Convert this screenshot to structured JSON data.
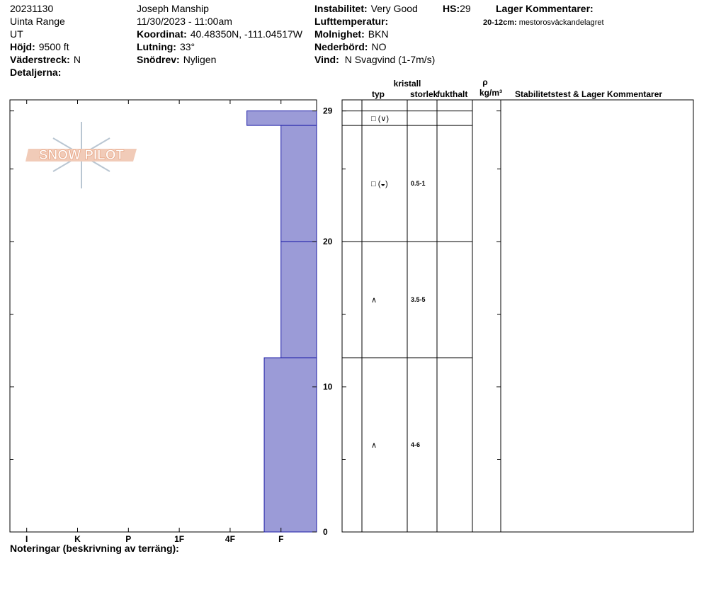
{
  "header": {
    "date": "20231130",
    "range": "Uinta Range",
    "state": "UT",
    "elevation": {
      "label": "Höjd:",
      "value": "9500 ft"
    },
    "aspect": {
      "label": "Väderstreck:",
      "value": "N"
    },
    "details": {
      "label": "Detaljerna:"
    },
    "observer": "Joseph Manship",
    "datetime": "11/30/2023 - 11:00am",
    "coordinates": {
      "label": "Koordinat:",
      "value": "40.48350N, -111.04517W"
    },
    "slope": {
      "label": "Lutning:",
      "value": "33°"
    },
    "wind_loading": {
      "label": "Snödrev:",
      "value": "Nyligen"
    },
    "instability": {
      "label": "Instabilitet:",
      "value": "Very Good"
    },
    "hs": {
      "label": "HS:",
      "value": "29"
    },
    "air_temp": {
      "label": "Lufttemperatur:"
    },
    "sky": {
      "label": "Molnighet:",
      "value": "BKN"
    },
    "precip": {
      "label": "Nederbörd:",
      "value": "NO"
    },
    "wind": {
      "label": "Vind:",
      "value": "N Svagvind (1-7m/s)"
    },
    "layer_comments": {
      "title": "Lager Kommentarer:",
      "items": [
        {
          "depth": "20-12cm:",
          "text": "mestorosväckandelagret"
        }
      ]
    }
  },
  "logo": "SNOW PILOT",
  "chart_data": {
    "type": "snow-profile",
    "xlim": [
      6.33,
      0.3
    ],
    "xticks": [
      {
        "value": 6,
        "label": "I"
      },
      {
        "value": 5,
        "label": "K"
      },
      {
        "value": 4,
        "label": "P"
      },
      {
        "value": 3,
        "label": "1F"
      },
      {
        "value": 2,
        "label": "4F"
      },
      {
        "value": 1,
        "label": "F"
      }
    ],
    "ylim": [
      0,
      29.76
    ],
    "yticks": [
      0,
      10,
      20,
      29
    ],
    "yminorticks": [
      5,
      15,
      25
    ],
    "bar_color": "#9b9bd7",
    "edge_color": "#1a1aa6",
    "layers": [
      {
        "bottom": 28,
        "top": 29,
        "hardness": 1.67,
        "grain": "□ (∨)"
      },
      {
        "bottom": 20,
        "top": 28,
        "hardness": 1,
        "grain": "□ (◒)",
        "size": "0.5-1"
      },
      {
        "bottom": 12,
        "top": 20,
        "hardness": 1,
        "grain": "∧",
        "size": "3.5-5"
      },
      {
        "bottom": 0,
        "top": 12,
        "hardness": 1.33,
        "grain": "∧",
        "size": "4-6"
      }
    ],
    "table_headers": {
      "type": "typ",
      "crystal": "kristall",
      "size": "storlek",
      "moisture": "fukthalt",
      "rho": "ρ",
      "density_unit": "kg/m³",
      "comments": "Stabilitetstest & Lager Kommentarer"
    }
  },
  "footer": "Noteringar (beskrivning av terräng):"
}
